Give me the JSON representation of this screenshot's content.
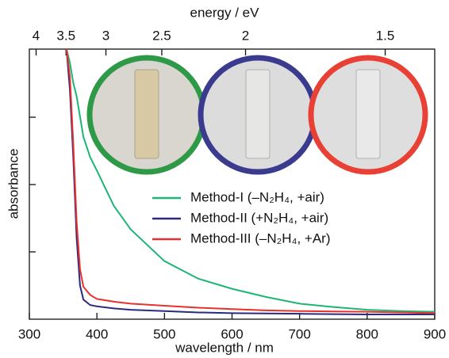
{
  "chart_data": {
    "type": "line",
    "x_label": "wavelength / nm",
    "y_label": "absorbance",
    "x2_label": "energy / eV",
    "xlim": [
      300,
      900
    ],
    "xticks": [
      300,
      400,
      500,
      600,
      700,
      800,
      900
    ],
    "x2ticks": [
      4,
      3.5,
      3,
      2.5,
      2,
      1.5
    ],
    "ylim": [
      0,
      4
    ],
    "x": [
      355,
      360,
      365,
      370,
      375,
      380,
      390,
      400,
      425,
      450,
      500,
      550,
      600,
      650,
      700,
      750,
      800,
      850,
      900
    ],
    "series": [
      {
        "name": "Method-I (–N₂H₄, +air)",
        "color": "#1cb574",
        "values": [
          4.0,
          3.8,
          3.5,
          3.3,
          3.0,
          2.7,
          2.4,
          2.2,
          1.68,
          1.33,
          0.86,
          0.6,
          0.45,
          0.33,
          0.23,
          0.18,
          0.14,
          0.12,
          0.11
        ]
      },
      {
        "name": "Method-II (+N₂H₄, +air)",
        "color": "#2b2a7c",
        "values": [
          4.0,
          3.4,
          2.4,
          1.2,
          0.5,
          0.29,
          0.21,
          0.19,
          0.16,
          0.14,
          0.12,
          0.1,
          0.09,
          0.085,
          0.08,
          0.075,
          0.07,
          0.07,
          0.07
        ]
      },
      {
        "name": "Method-III (–N₂H₄, +Ar)",
        "color": "#e8302f",
        "values": [
          4.0,
          3.6,
          2.6,
          1.44,
          0.74,
          0.48,
          0.36,
          0.3,
          0.26,
          0.23,
          0.2,
          0.17,
          0.15,
          0.13,
          0.12,
          0.115,
          0.11,
          0.1,
          0.09
        ]
      }
    ]
  }
}
